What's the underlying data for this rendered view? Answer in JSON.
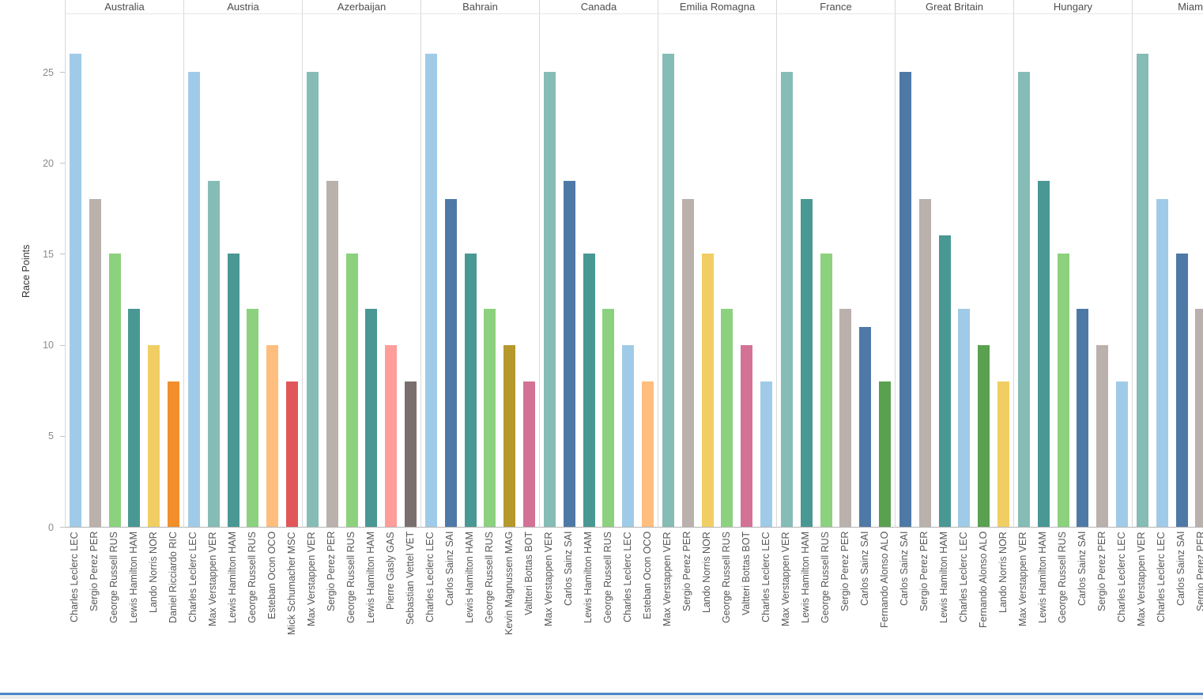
{
  "chart_data": {
    "type": "bar",
    "title": "",
    "xlabel": "",
    "ylabel": "Race Points",
    "yticks": [
      0,
      5,
      10,
      15,
      20,
      25
    ],
    "ylim": [
      0,
      28.2
    ],
    "grid": false,
    "legend": "none",
    "layout": "small-multiples faceted by race, rotated driver labels on x-axis",
    "panels": [
      {
        "race": "Australia",
        "bars": [
          {
            "driver": "Charles Leclerc LEC",
            "points": 26
          },
          {
            "driver": "Sergio Perez PER",
            "points": 18
          },
          {
            "driver": "George Russell RUS",
            "points": 15
          },
          {
            "driver": "Lewis Hamilton HAM",
            "points": 12
          },
          {
            "driver": "Lando Norris NOR",
            "points": 10
          },
          {
            "driver": "Daniel Ricciardo RIC",
            "points": 8
          }
        ]
      },
      {
        "race": "Austria",
        "bars": [
          {
            "driver": "Charles Leclerc LEC",
            "points": 25
          },
          {
            "driver": "Max Verstappen VER",
            "points": 19
          },
          {
            "driver": "Lewis Hamilton HAM",
            "points": 15
          },
          {
            "driver": "George Russell RUS",
            "points": 12
          },
          {
            "driver": "Esteban Ocon OCO",
            "points": 10
          },
          {
            "driver": "Mick Schumacher MSC",
            "points": 8
          }
        ]
      },
      {
        "race": "Azerbaijan",
        "bars": [
          {
            "driver": "Max Verstappen VER",
            "points": 25
          },
          {
            "driver": "Sergio Perez PER",
            "points": 19
          },
          {
            "driver": "George Russell RUS",
            "points": 15
          },
          {
            "driver": "Lewis Hamilton HAM",
            "points": 12
          },
          {
            "driver": "Pierre Gasly GAS",
            "points": 10
          },
          {
            "driver": "Sebastian Vettel VET",
            "points": 8
          }
        ]
      },
      {
        "race": "Bahrain",
        "bars": [
          {
            "driver": "Charles Leclerc LEC",
            "points": 26
          },
          {
            "driver": "Carlos Sainz SAI",
            "points": 18
          },
          {
            "driver": "Lewis Hamilton HAM",
            "points": 15
          },
          {
            "driver": "George Russell RUS",
            "points": 12
          },
          {
            "driver": "Kevin Magnussen MAG",
            "points": 10
          },
          {
            "driver": "Valtteri Bottas BOT",
            "points": 8
          }
        ]
      },
      {
        "race": "Canada",
        "bars": [
          {
            "driver": "Max Verstappen VER",
            "points": 25
          },
          {
            "driver": "Carlos Sainz SAI",
            "points": 19
          },
          {
            "driver": "Lewis Hamilton HAM",
            "points": 15
          },
          {
            "driver": "George Russell RUS",
            "points": 12
          },
          {
            "driver": "Charles Leclerc LEC",
            "points": 10
          },
          {
            "driver": "Esteban Ocon OCO",
            "points": 8
          }
        ]
      },
      {
        "race": "Emilia Romagna",
        "bars": [
          {
            "driver": "Max Verstappen VER",
            "points": 26
          },
          {
            "driver": "Sergio Perez PER",
            "points": 18
          },
          {
            "driver": "Lando Norris NOR",
            "points": 15
          },
          {
            "driver": "George Russell RUS",
            "points": 12
          },
          {
            "driver": "Valtteri Bottas BOT",
            "points": 10
          },
          {
            "driver": "Charles Leclerc LEC",
            "points": 8
          }
        ]
      },
      {
        "race": "France",
        "bars": [
          {
            "driver": "Max Verstappen VER",
            "points": 25
          },
          {
            "driver": "Lewis Hamilton HAM",
            "points": 18
          },
          {
            "driver": "George Russell RUS",
            "points": 15
          },
          {
            "driver": "Sergio Perez PER",
            "points": 12
          },
          {
            "driver": "Carlos Sainz SAI",
            "points": 11
          },
          {
            "driver": "Fernando Alonso ALO",
            "points": 8
          }
        ]
      },
      {
        "race": "Great Britain",
        "bars": [
          {
            "driver": "Carlos Sainz SAI",
            "points": 25
          },
          {
            "driver": "Sergio Perez PER",
            "points": 18
          },
          {
            "driver": "Lewis Hamilton HAM",
            "points": 16
          },
          {
            "driver": "Charles Leclerc LEC",
            "points": 12
          },
          {
            "driver": "Fernando Alonso ALO",
            "points": 10
          },
          {
            "driver": "Lando Norris NOR",
            "points": 8
          }
        ]
      },
      {
        "race": "Hungary",
        "bars": [
          {
            "driver": "Max Verstappen VER",
            "points": 25
          },
          {
            "driver": "Lewis Hamilton HAM",
            "points": 19
          },
          {
            "driver": "George Russell RUS",
            "points": 15
          },
          {
            "driver": "Carlos Sainz SAI",
            "points": 12
          },
          {
            "driver": "Sergio Perez PER",
            "points": 10
          },
          {
            "driver": "Charles Leclerc LEC",
            "points": 8
          }
        ]
      },
      {
        "race": "Miami",
        "bars": [
          {
            "driver": "Max Verstappen VER",
            "points": 26
          },
          {
            "driver": "Charles Leclerc LEC",
            "points": 18
          },
          {
            "driver": "Carlos Sainz SAI",
            "points": 15
          },
          {
            "driver": "Sergio Perez PER",
            "points": 12
          }
        ]
      }
    ],
    "driver_colors": {
      "Charles Leclerc LEC": "#A0CBE8",
      "Max Verstappen VER": "#86BCB6",
      "Sergio Perez PER": "#BAB0AC",
      "George Russell RUS": "#8CD17D",
      "Lewis Hamilton HAM": "#499894",
      "Carlos Sainz SAI": "#4E79A7",
      "Lando Norris NOR": "#F1CE63",
      "Daniel Ricciardo RIC": "#F28E2B",
      "Esteban Ocon OCO": "#FFBE7D",
      "Mick Schumacher MSC": "#E15759",
      "Pierre Gasly GAS": "#FF9D9A",
      "Sebastian Vettel VET": "#79706E",
      "Kevin Magnussen MAG": "#B6992D",
      "Valtteri Bottas BOT": "#D37295",
      "Fernando Alonso ALO": "#59A14F"
    }
  },
  "window": {
    "accent_line_color": "#4A86C8",
    "bottom_strip_color": "#ECECEC"
  }
}
